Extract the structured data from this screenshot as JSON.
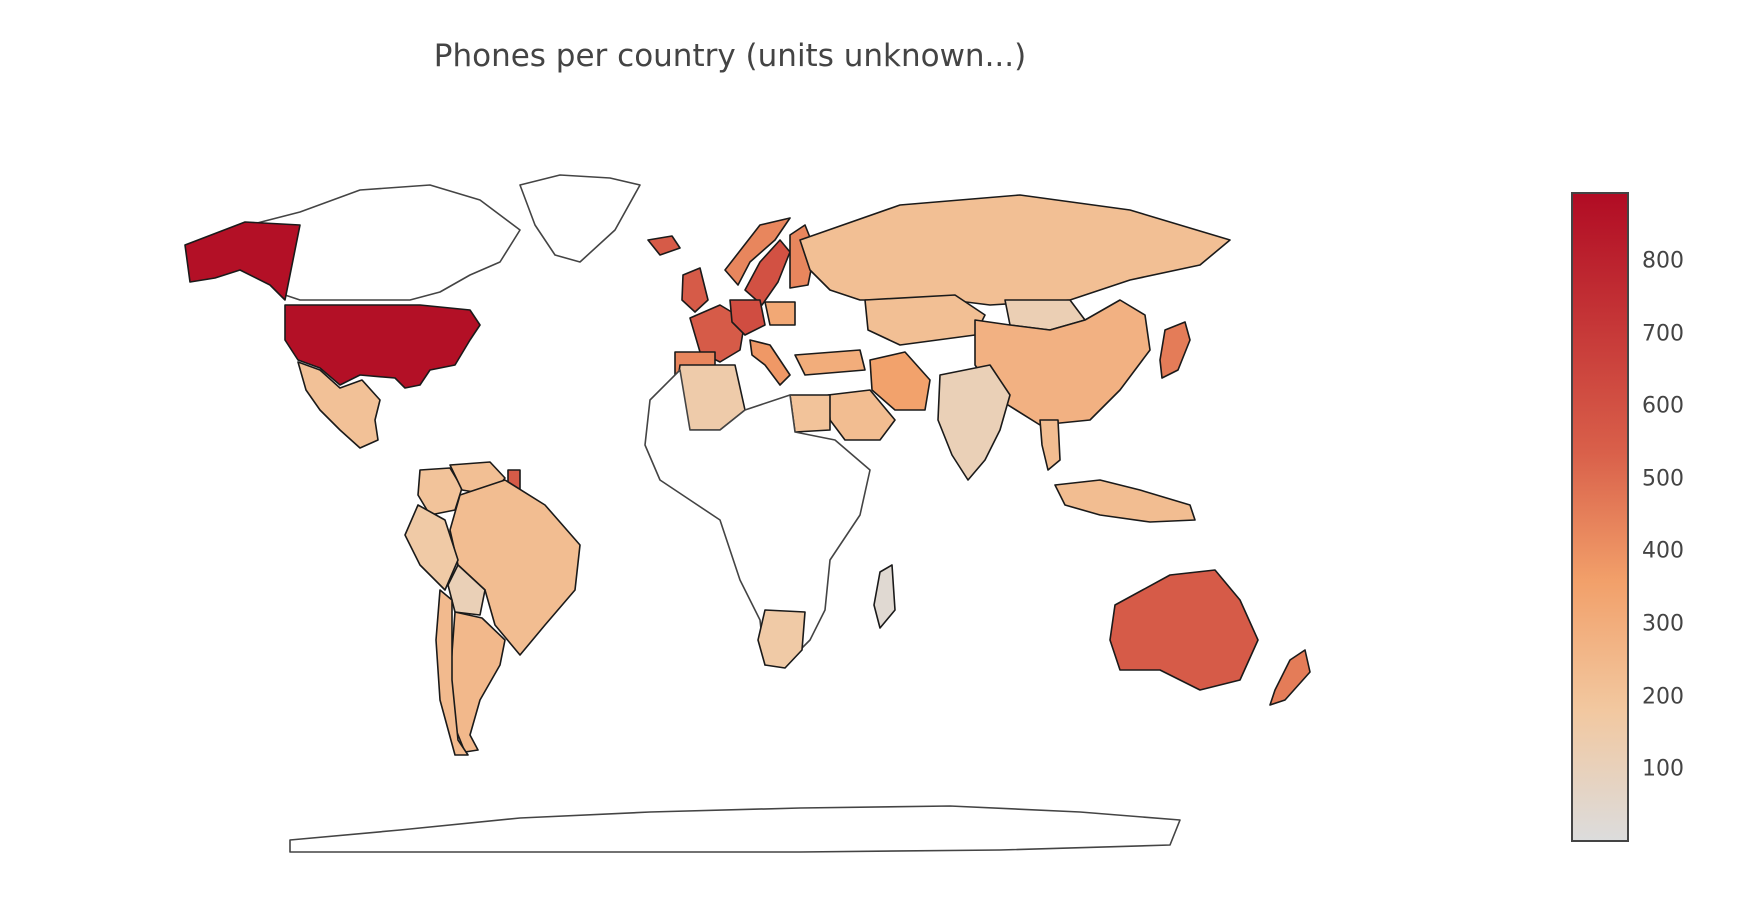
{
  "title": "Phones per country (units unknown...)",
  "colorscale": {
    "name": "Reds",
    "min": 0,
    "max": 895,
    "stops": [
      [
        0,
        "#dcdcdc"
      ],
      [
        0.2,
        "#f2c8a0"
      ],
      [
        0.4,
        "#f2a06a"
      ],
      [
        0.6,
        "#d9604a"
      ],
      [
        1,
        "#b10c24"
      ]
    ],
    "ticks": [
      "100",
      "200",
      "300",
      "400",
      "500",
      "600",
      "700",
      "800"
    ],
    "tick_values": [
      100,
      200,
      300,
      400,
      500,
      600,
      700,
      800
    ]
  },
  "nodata_color": "#ffffff",
  "chart_data": {
    "type": "choropleth",
    "projection": "natural-earth",
    "colorbar_ticks": [
      100,
      200,
      300,
      400,
      500,
      600,
      700,
      800
    ],
    "countries": [
      {
        "name": "United States",
        "value": 880
      },
      {
        "name": "Alaska (United States)",
        "value": 880
      },
      {
        "name": "Canada",
        "value": null
      },
      {
        "name": "Greenland",
        "value": null
      },
      {
        "name": "Mexico",
        "value": 210
      },
      {
        "name": "Brazil",
        "value": 230
      },
      {
        "name": "Argentina",
        "value": 250
      },
      {
        "name": "Chile",
        "value": 240
      },
      {
        "name": "Peru",
        "value": 160
      },
      {
        "name": "Colombia",
        "value": 200
      },
      {
        "name": "Venezuela",
        "value": 220
      },
      {
        "name": "Bolivia",
        "value": 110
      },
      {
        "name": "French Guiana",
        "value": 560
      },
      {
        "name": "United Kingdom",
        "value": 560
      },
      {
        "name": "France",
        "value": 560
      },
      {
        "name": "Spain",
        "value": 430
      },
      {
        "name": "Germany",
        "value": 620
      },
      {
        "name": "Sweden",
        "value": 600
      },
      {
        "name": "Norway",
        "value": 430
      },
      {
        "name": "Finland",
        "value": 430
      },
      {
        "name": "Iceland",
        "value": 560
      },
      {
        "name": "Italy",
        "value": 380
      },
      {
        "name": "Poland",
        "value": 320
      },
      {
        "name": "Russia",
        "value": 220
      },
      {
        "name": "China",
        "value": 280
      },
      {
        "name": "Mongolia",
        "value": 120
      },
      {
        "name": "Kazakhstan",
        "value": 220
      },
      {
        "name": "Iran",
        "value": 350
      },
      {
        "name": "India",
        "value": 110
      },
      {
        "name": "Japan",
        "value": 460
      },
      {
        "name": "Saudi Arabia",
        "value": 230
      },
      {
        "name": "Egypt",
        "value": 200
      },
      {
        "name": "Algeria",
        "value": 150
      },
      {
        "name": "Turkey",
        "value": 300
      },
      {
        "name": "Australia",
        "value": 560
      },
      {
        "name": "New Zealand",
        "value": 460
      },
      {
        "name": "South Africa",
        "value": 160
      },
      {
        "name": "Indonesia",
        "value": 230
      },
      {
        "name": "Thailand",
        "value": 230
      },
      {
        "name": "Madagascar",
        "value": 30
      }
    ]
  }
}
